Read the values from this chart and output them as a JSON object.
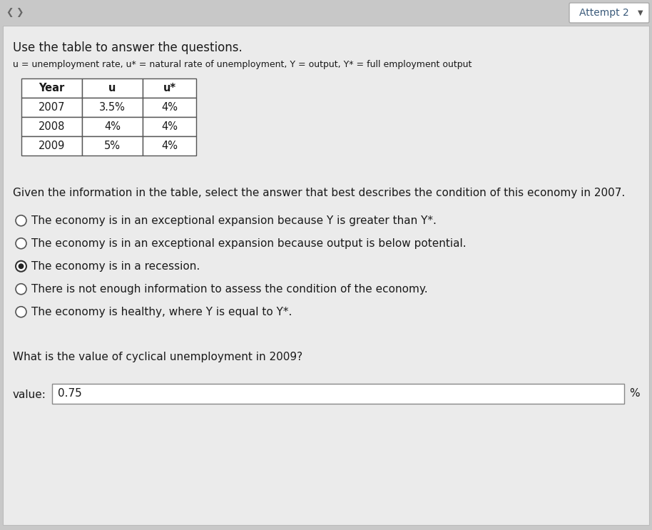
{
  "title_top_right": "Attempt 2",
  "main_instruction": "Use the table to answer the questions.",
  "legend_text": "u = unemployment rate, u* = natural rate of unemployment, Y = output, Y* = full employment output",
  "table_headers": [
    "Year",
    "u",
    "u*"
  ],
  "table_data": [
    [
      "2007",
      "3.5%",
      "4%"
    ],
    [
      "2008",
      "4%",
      "4%"
    ],
    [
      "2009",
      "5%",
      "4%"
    ]
  ],
  "question1": "Given the information in the table, select the answer that best describes the condition of this economy in 2007.",
  "options": [
    "The economy is in an exceptional expansion because Y is greater than Y*.",
    "The economy is in an exceptional expansion because output is below potential.",
    "The economy is in a recession.",
    "There is not enough information to assess the condition of the economy.",
    "The economy is healthy, where Y is equal to Y*."
  ],
  "selected_option_index": 2,
  "question2": "What is the value of cyclical unemployment in 2009?",
  "value_label": "value:",
  "value": "0.75",
  "percent_sign": "%",
  "outer_bg": "#c8c8c8",
  "panel_bg": "#ebebeb",
  "white": "#ffffff",
  "border_color": "#888888",
  "text_color": "#1a1a1a",
  "btn_text_color": "#3a5a7a",
  "nav_color": "#666666"
}
